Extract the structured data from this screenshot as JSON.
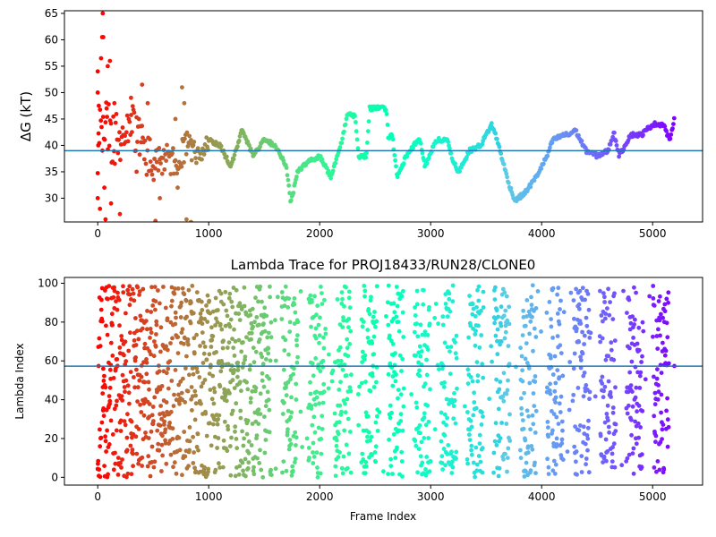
{
  "chart_data": [
    {
      "type": "scatter",
      "title": "",
      "xlabel": "",
      "ylabel": "ΔG (kT)",
      "xlim": [
        -300,
        5450
      ],
      "ylim": [
        25.5,
        65.5
      ],
      "xticks": [
        0,
        1000,
        2000,
        3000,
        4000,
        5000
      ],
      "yticks": [
        30,
        35,
        40,
        45,
        50,
        55,
        60,
        65
      ],
      "xtick_labels": [
        "0",
        "1000",
        "2000",
        "3000",
        "4000",
        "5000"
      ],
      "ytick_labels": [
        "30",
        "35",
        "40",
        "45",
        "50",
        "55",
        "60",
        "65"
      ],
      "reference_line": 39.0,
      "reference_line_color": "#1f77b4",
      "colormap": "rainbow (red at frame 0 → violet at last frame)",
      "grid": false,
      "trace_keypoints": [
        [
          0,
          40
        ],
        [
          60,
          45
        ],
        [
          120,
          42
        ],
        [
          200,
          40
        ],
        [
          300,
          44
        ],
        [
          400,
          40
        ],
        [
          500,
          36
        ],
        [
          600,
          38
        ],
        [
          700,
          37
        ],
        [
          800,
          40
        ],
        [
          900,
          38
        ],
        [
          1000,
          41
        ],
        [
          1100,
          40
        ],
        [
          1200,
          36
        ],
        [
          1300,
          43
        ],
        [
          1400,
          38
        ],
        [
          1500,
          41
        ],
        [
          1600,
          40
        ],
        [
          1700,
          36
        ],
        [
          1740,
          29
        ],
        [
          1800,
          35
        ],
        [
          1900,
          37
        ],
        [
          2000,
          38
        ],
        [
          2100,
          34
        ],
        [
          2200,
          41
        ],
        [
          2250,
          46
        ],
        [
          2320,
          45.5
        ],
        [
          2350,
          38
        ],
        [
          2420,
          38
        ],
        [
          2450,
          47
        ],
        [
          2600,
          47
        ],
        [
          2620,
          41
        ],
        [
          2650,
          42.5
        ],
        [
          2700,
          34
        ],
        [
          2780,
          38
        ],
        [
          2900,
          41.5
        ],
        [
          2950,
          36
        ],
        [
          3050,
          41
        ],
        [
          3150,
          41
        ],
        [
          3200,
          37
        ],
        [
          3250,
          35
        ],
        [
          3350,
          39
        ],
        [
          3450,
          40
        ],
        [
          3550,
          44
        ],
        [
          3600,
          41
        ],
        [
          3700,
          33
        ],
        [
          3760,
          29.5
        ],
        [
          3850,
          31
        ],
        [
          3950,
          34
        ],
        [
          4000,
          36
        ],
        [
          4050,
          38
        ],
        [
          4100,
          41
        ],
        [
          4200,
          42
        ],
        [
          4250,
          42
        ],
        [
          4300,
          43
        ],
        [
          4400,
          39
        ],
        [
          4500,
          38
        ],
        [
          4600,
          39
        ],
        [
          4650,
          42.5
        ],
        [
          4700,
          38
        ],
        [
          4750,
          40
        ],
        [
          4800,
          42
        ],
        [
          4900,
          42
        ],
        [
          5000,
          44
        ],
        [
          5100,
          44
        ],
        [
          5150,
          41
        ],
        [
          5180,
          43
        ],
        [
          5200,
          45.5
        ]
      ],
      "early_spikes": [
        [
          0,
          54
        ],
        [
          0,
          50
        ],
        [
          0,
          30
        ],
        [
          5,
          40
        ],
        [
          10,
          47.5
        ],
        [
          20,
          28
        ],
        [
          30,
          56.5
        ],
        [
          40,
          60.5
        ],
        [
          45,
          65
        ],
        [
          50,
          60.5
        ],
        [
          60,
          32
        ],
        [
          70,
          26
        ],
        [
          80,
          47
        ],
        [
          90,
          55
        ],
        [
          110,
          56
        ],
        [
          120,
          29
        ],
        [
          150,
          48
        ],
        [
          200,
          27
        ],
        [
          300,
          49
        ],
        [
          350,
          35
        ],
        [
          400,
          51.5
        ],
        [
          450,
          48
        ],
        [
          520,
          25.7
        ],
        [
          560,
          30
        ],
        [
          700,
          45
        ],
        [
          720,
          32
        ],
        [
          760,
          51
        ],
        [
          780,
          48
        ],
        [
          800,
          26
        ],
        [
          840,
          25.5
        ]
      ]
    },
    {
      "type": "scatter",
      "title": "Lambda Trace for PROJ18433/RUN28/CLONE0",
      "xlabel": "Frame Index",
      "ylabel": "Lambda Index",
      "xlim": [
        -300,
        5450
      ],
      "ylim": [
        -4,
        103
      ],
      "xticks": [
        0,
        1000,
        2000,
        3000,
        4000,
        5000
      ],
      "yticks": [
        0,
        20,
        40,
        60,
        80,
        100
      ],
      "xtick_labels": [
        "0",
        "1000",
        "2000",
        "3000",
        "4000",
        "5000"
      ],
      "ytick_labels": [
        "0",
        "20",
        "40",
        "60",
        "80",
        "100"
      ],
      "reference_line": 57.3,
      "reference_line_color": "#1f77b4",
      "colormap": "rainbow (red at frame 0 → violet at last frame)",
      "grid": false,
      "value_range": [
        0,
        99
      ],
      "n_frames": 5200
    }
  ]
}
